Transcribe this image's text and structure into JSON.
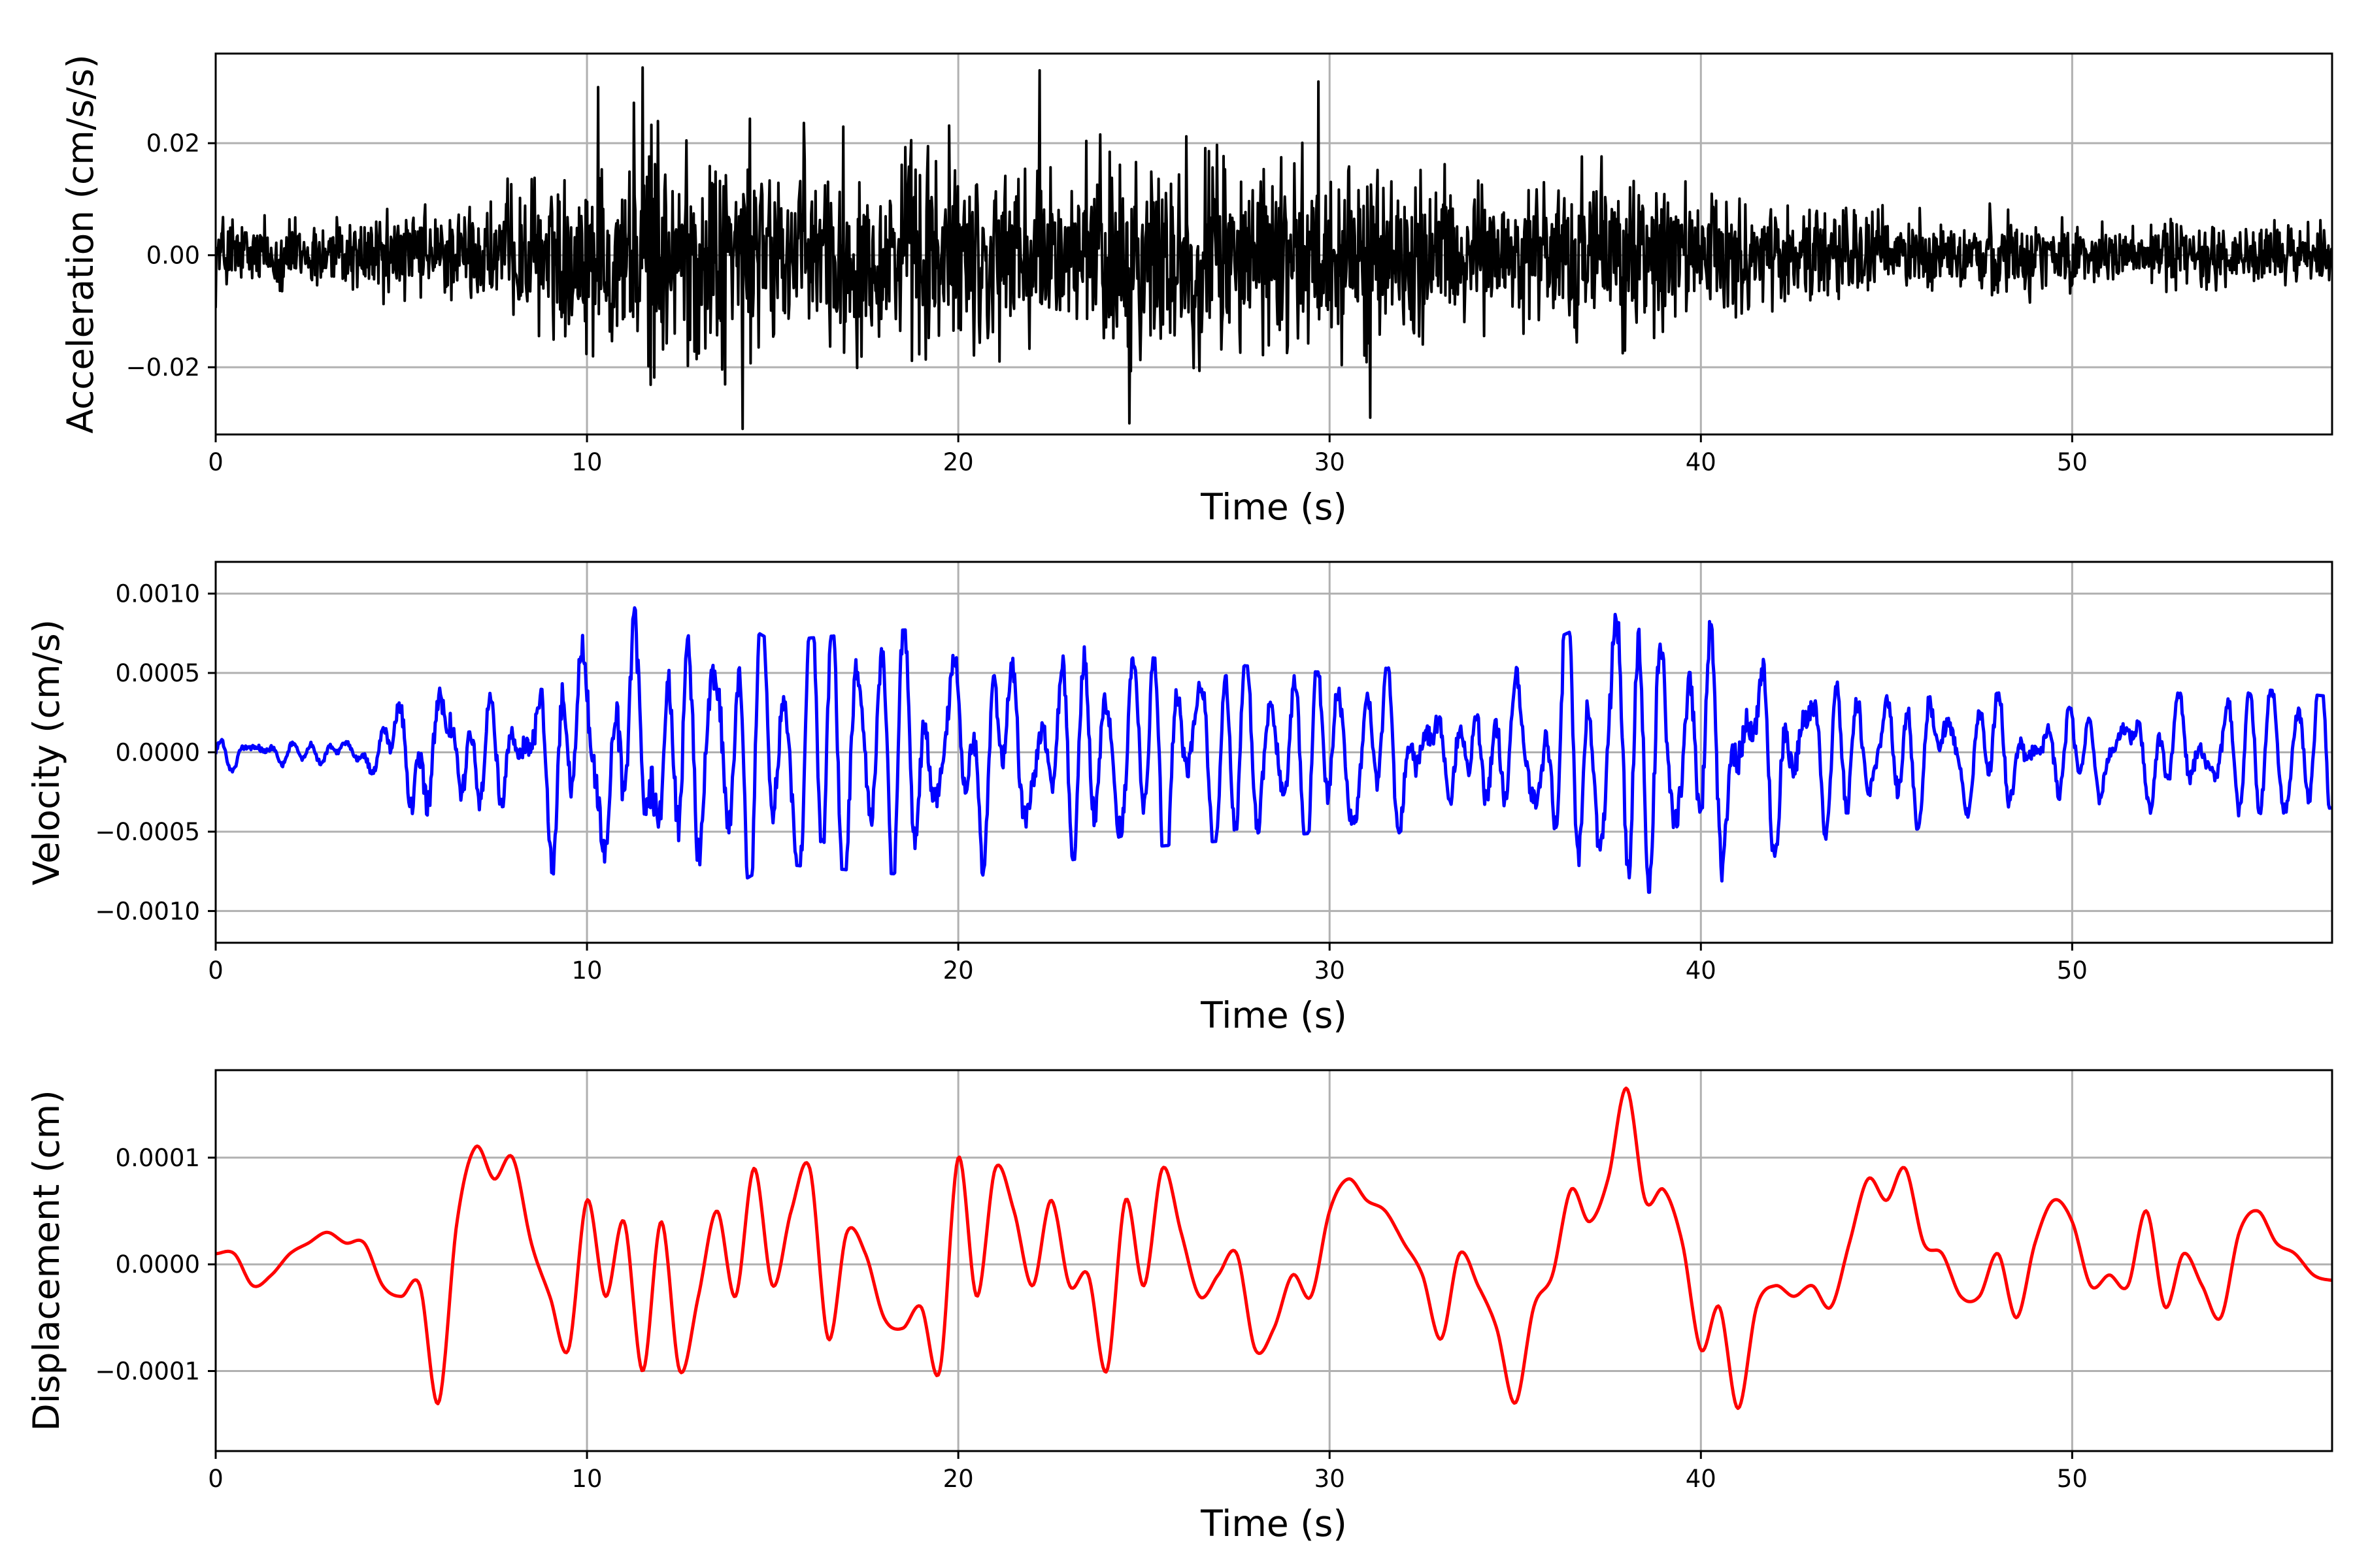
{
  "chart_data": [
    {
      "type": "line",
      "xlabel": "Time (s)",
      "ylabel": "Acceleration (cm/s/s)",
      "xlim": [
        0,
        57
      ],
      "ylim": [
        -0.032,
        0.036
      ],
      "xticks": [
        0,
        10,
        20,
        30,
        40,
        50
      ],
      "xtick_labels": [
        "0",
        "10",
        "20",
        "30",
        "40",
        "50"
      ],
      "yticks": [
        -0.02,
        0.0,
        0.02
      ],
      "ytick_labels": [
        "−0.02",
        "0.00",
        "0.02"
      ],
      "grid": true,
      "series": [
        {
          "color": "#000000",
          "signal": "noise",
          "x": [
            0,
            3,
            7,
            10,
            11.5,
            15,
            20,
            22,
            25,
            30,
            35,
            38,
            40,
            45,
            50,
            55,
            57
          ],
          "envelope": [
            0.01,
            0.009,
            0.012,
            0.02,
            0.03,
            0.024,
            0.026,
            0.022,
            0.026,
            0.023,
            0.016,
            0.021,
            0.014,
            0.011,
            0.008,
            0.007,
            0.007
          ],
          "peaks": [
            {
              "x": 11.5,
              "y": 0.0335
            },
            {
              "x": 14.2,
              "y": -0.031
            },
            {
              "x": 24.6,
              "y": -0.03
            },
            {
              "x": 31.1,
              "y": -0.029
            },
            {
              "x": 10.3,
              "y": 0.03
            },
            {
              "x": 29.7,
              "y": 0.031
            },
            {
              "x": 22.2,
              "y": 0.033
            }
          ]
        }
      ]
    },
    {
      "type": "line",
      "xlabel": "Time (s)",
      "ylabel": "Velocity (cm/s)",
      "xlim": [
        0,
        57
      ],
      "ylim": [
        -0.0012,
        0.0012
      ],
      "xticks": [
        0,
        10,
        20,
        30,
        40,
        50
      ],
      "xtick_labels": [
        "0",
        "10",
        "20",
        "30",
        "40",
        "50"
      ],
      "yticks": [
        -0.001,
        -0.0005,
        0.0,
        0.0005,
        0.001
      ],
      "ytick_labels": [
        "−0.0010",
        "−0.0005",
        "0.0000",
        "0.0005",
        "0.0010"
      ],
      "grid": true,
      "series": [
        {
          "color": "#0000ff",
          "signal": "oscillation",
          "x": [
            0,
            4,
            5.8,
            7.5,
            9.6,
            11.6,
            12.4,
            15,
            20,
            25,
            30,
            35,
            37.8,
            40,
            45,
            50,
            55,
            57
          ],
          "envelope": [
            0.00012,
            0.00015,
            0.0007,
            0.0005,
            0.00085,
            0.00108,
            0.00105,
            0.0007,
            0.0008,
            0.0006,
            0.0005,
            0.0006,
            0.0009,
            0.00085,
            0.0005,
            0.0004,
            0.0004,
            0.00035
          ]
        }
      ]
    },
    {
      "type": "line",
      "xlabel": "Time (s)",
      "ylabel": "Displacement (cm)",
      "xlim": [
        0,
        57
      ],
      "ylim": [
        -0.000175,
        0.000182
      ],
      "xticks": [
        0,
        10,
        20,
        30,
        40,
        50
      ],
      "xtick_labels": [
        "0",
        "10",
        "20",
        "30",
        "40",
        "50"
      ],
      "yticks": [
        -0.0001,
        0.0,
        0.0001
      ],
      "ytick_labels": [
        "−0.0001",
        "0.0000",
        "0.0001"
      ],
      "grid": true,
      "series": [
        {
          "color": "#ff0000",
          "x": [
            0,
            0.5,
            1.0,
            1.5,
            2.0,
            2.5,
            3.0,
            3.5,
            4.0,
            4.5,
            5.0,
            5.5,
            6.0,
            6.5,
            7.0,
            7.5,
            8.0,
            8.5,
            9.0,
            9.5,
            10.0,
            10.5,
            11.0,
            11.5,
            12.0,
            12.5,
            13.0,
            13.5,
            14.0,
            14.5,
            15.0,
            15.5,
            16.0,
            16.5,
            17.0,
            17.5,
            18.0,
            18.5,
            19.0,
            19.5,
            20.0,
            20.5,
            21.0,
            21.5,
            22.0,
            22.5,
            23.0,
            23.5,
            24.0,
            24.5,
            25.0,
            25.5,
            26.0,
            26.5,
            27.0,
            27.5,
            28.0,
            28.5,
            29.0,
            29.5,
            30.0,
            30.5,
            31.0,
            31.5,
            32.0,
            32.5,
            33.0,
            33.5,
            34.0,
            34.5,
            35.0,
            35.5,
            36.0,
            36.5,
            37.0,
            37.5,
            38.0,
            38.5,
            39.0,
            39.5,
            40.0,
            40.5,
            41.0,
            41.5,
            42.0,
            42.5,
            43.0,
            43.5,
            44.0,
            44.5,
            45.0,
            45.5,
            46.0,
            46.5,
            47.0,
            47.5,
            48.0,
            48.5,
            49.0,
            49.5,
            50.0,
            50.5,
            51.0,
            51.5,
            52.0,
            52.5,
            53.0,
            53.5,
            54.0,
            54.5,
            55.0,
            55.5,
            56.0,
            56.5,
            57.0
          ],
          "y": [
            1e-05,
            1e-05,
            -2e-05,
            -1e-05,
            1e-05,
            2e-05,
            3e-05,
            2e-05,
            2e-05,
            -2e-05,
            -3e-05,
            -2e-05,
            -0.00013,
            4e-05,
            0.00011,
            8e-05,
            0.0001,
            2e-05,
            -3e-05,
            -8e-05,
            6e-05,
            -3e-05,
            4e-05,
            -0.0001,
            4e-05,
            -0.0001,
            -3e-05,
            5e-05,
            -3e-05,
            9e-05,
            -2e-05,
            5e-05,
            9e-05,
            -7e-05,
            3e-05,
            1e-05,
            -5e-05,
            -6e-05,
            -4e-05,
            -0.0001,
            0.0001,
            -3e-05,
            9e-05,
            5e-05,
            -2e-05,
            6e-05,
            -2e-05,
            -1e-05,
            -0.0001,
            6e-05,
            -2e-05,
            9e-05,
            3e-05,
            -3e-05,
            -1e-05,
            1e-05,
            -8e-05,
            -6e-05,
            -1e-05,
            -3e-05,
            5e-05,
            8e-05,
            6e-05,
            5e-05,
            2e-05,
            -1e-05,
            -7e-05,
            1e-05,
            -2e-05,
            -6e-05,
            -0.00013,
            -4e-05,
            -1e-05,
            7e-05,
            4e-05,
            8e-05,
            0.000165,
            6e-05,
            7e-05,
            2e-05,
            -8e-05,
            -4e-05,
            -0.000135,
            -4e-05,
            -2e-05,
            -3e-05,
            -2e-05,
            -4e-05,
            2e-05,
            8e-05,
            6e-05,
            9e-05,
            2e-05,
            1e-05,
            -3e-05,
            -3e-05,
            1e-05,
            -5e-05,
            2e-05,
            6e-05,
            4e-05,
            -2e-05,
            -1e-05,
            -2e-05,
            5e-05,
            -4e-05,
            1e-05,
            -2e-05,
            -5e-05,
            3e-05,
            5e-05,
            2e-05,
            1e-05,
            -1e-05,
            -1.5e-05
          ]
        }
      ]
    }
  ]
}
